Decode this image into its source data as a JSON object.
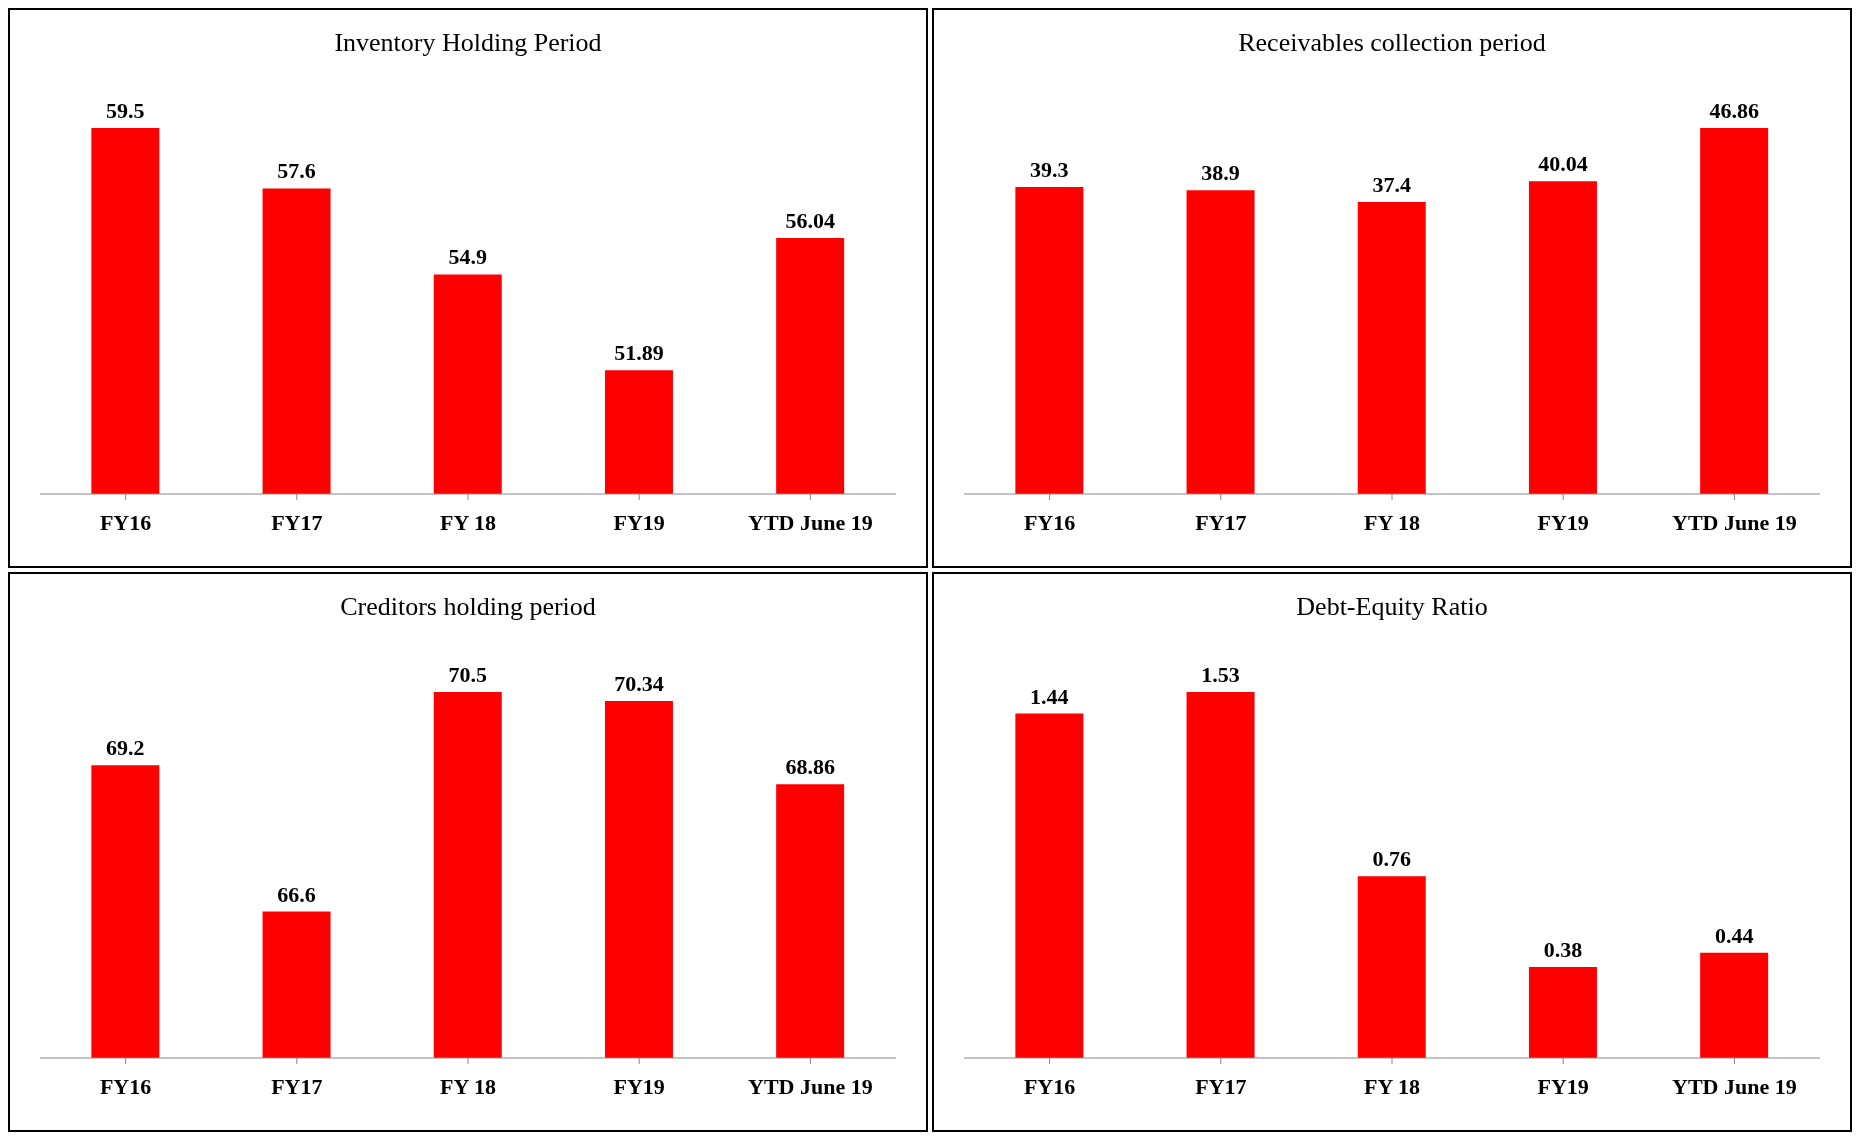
{
  "chart_data": [
    {
      "type": "bar",
      "title": "Inventory Holding Period",
      "categories": [
        "FY16",
        "FY17",
        "FY 18",
        "FY19",
        "YTD June 19"
      ],
      "values": [
        59.5,
        57.6,
        54.9,
        51.89,
        56.04
      ],
      "color": "#ff0000",
      "data_labels": true,
      "ylim": [
        48,
        59.5
      ],
      "tick_labels": "x",
      "grid": false,
      "legend": false
    },
    {
      "type": "bar",
      "title": "Receivables  collection  period",
      "categories": [
        "FY16",
        "FY17",
        "FY 18",
        "FY19",
        "YTD June 19"
      ],
      "values": [
        39.3,
        38.9,
        37.4,
        40.04,
        46.86
      ],
      "color": "#ff0000",
      "data_labels": true,
      "ylim": [
        0,
        46.86
      ],
      "tick_labels": "x",
      "grid": false,
      "legend": false
    },
    {
      "type": "bar",
      "title": "Creditors holding period",
      "categories": [
        "FY16",
        "FY17",
        "FY 18",
        "FY19",
        "YTD June 19"
      ],
      "values": [
        69.2,
        66.6,
        70.5,
        70.34,
        68.86
      ],
      "color": "#ff0000",
      "data_labels": true,
      "ylim": [
        64,
        70.5
      ],
      "tick_labels": "x",
      "grid": false,
      "legend": false
    },
    {
      "type": "bar",
      "title": "Debt-Equity  Ratio",
      "categories": [
        "FY16",
        "FY17",
        "FY 18",
        "FY19",
        "YTD June 19"
      ],
      "values": [
        1.44,
        1.53,
        0.76,
        0.38,
        0.44
      ],
      "color": "#ff0000",
      "data_labels": true,
      "ylim": [
        0,
        1.53
      ],
      "tick_labels": "x",
      "grid": false,
      "legend": false
    }
  ]
}
